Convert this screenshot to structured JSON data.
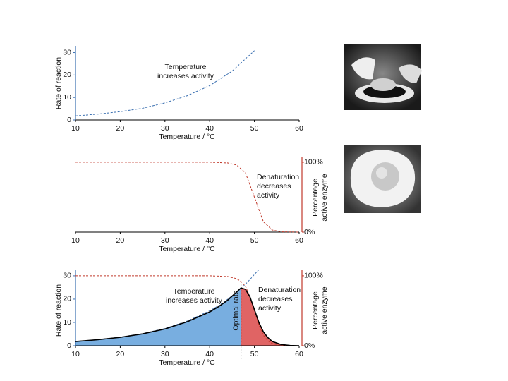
{
  "chart_data": [
    {
      "type": "line",
      "x": [
        10,
        15,
        20,
        25,
        30,
        35,
        40,
        45,
        50
      ],
      "series": [
        {
          "color": "#3a6fb0",
          "dash": true,
          "values": [
            1.8,
            2.6,
            3.7,
            5.2,
            7.6,
            10.8,
            15.3,
            21.7,
            30.9
          ]
        }
      ],
      "xlim": [
        10,
        60
      ],
      "xticks": [
        10,
        20,
        30,
        40,
        50,
        60
      ],
      "ylim": [
        0,
        33
      ],
      "yticks": [
        0,
        10,
        20,
        30
      ],
      "xlabel": "Temperature / °C",
      "ylabel": [
        "Rate of reaction"
      ],
      "y_axis_color": "#3a6fb0",
      "annotations": [
        {
          "lines": [
            "Temperature",
            "increases activity"
          ]
        }
      ]
    },
    {
      "type": "line",
      "x": [
        10,
        20,
        30,
        40,
        44,
        46,
        48,
        50,
        52,
        54,
        56,
        60
      ],
      "series": [
        {
          "color": "#c0392b",
          "dash": true,
          "axis": "y2",
          "values": [
            100,
            100,
            100,
            100,
            99,
            96,
            85,
            50,
            15,
            3,
            0.5,
            0
          ]
        }
      ],
      "xlim": [
        10,
        60
      ],
      "xticks": [
        10,
        20,
        30,
        40,
        50,
        60
      ],
      "y2lim": [
        0,
        108
      ],
      "y2ticks": [
        {
          "value": 0,
          "label": "0%"
        },
        {
          "value": 100,
          "label": "100%"
        }
      ],
      "xlabel": "Temperature / °C",
      "y2label": [
        "Percentage",
        "active enzyme"
      ],
      "y2_axis_color": "#c0392b",
      "annotations": [
        {
          "lines": [
            "Denaturation",
            "decreases",
            "activity"
          ]
        }
      ]
    },
    {
      "type": "line",
      "x": [
        10,
        15,
        20,
        25,
        30,
        35,
        40,
        42,
        44,
        46,
        47,
        48,
        49,
        50,
        51,
        52,
        53,
        54,
        56,
        58,
        60
      ],
      "series": [
        {
          "color": "#3a6fb0",
          "dash": true,
          "values": [
            1.8,
            2.6,
            3.7,
            5.2,
            7.4,
            10.6,
            15.0,
            17.2,
            19.9,
            22.9,
            24.6,
            26.4,
            28.4,
            30.6,
            32.6,
            null,
            null,
            null,
            null,
            null,
            null
          ]
        },
        {
          "color": "#c0392b",
          "dash": true,
          "axis": "y2",
          "values": [
            100,
            100,
            100,
            100,
            100,
            100,
            100,
            99.5,
            99,
            96,
            92,
            85,
            70,
            50,
            30,
            15,
            7,
            3,
            0.5,
            0,
            0
          ]
        },
        {
          "color": "#000000",
          "dash": false,
          "width": 1.6,
          "values": [
            1.8,
            2.6,
            3.6,
            5.1,
            7.2,
            10.3,
            14.5,
            16.8,
            19.5,
            23,
            24.8,
            24.2,
            21,
            15.5,
            10,
            6,
            3.5,
            1.8,
            0.5,
            0.1,
            0
          ]
        }
      ],
      "fill_series": 2,
      "optimal_x": 47,
      "optimal_label": "Optimal rate",
      "fill_colors": {
        "below_optimum": "#78aee0",
        "above_optimum": "#e06464"
      },
      "xlim": [
        10,
        60
      ],
      "xticks": [
        10,
        20,
        30,
        40,
        50,
        60
      ],
      "ylim": [
        0,
        32.4
      ],
      "yticks": [
        0,
        10,
        20,
        30
      ],
      "y2lim": [
        0,
        108
      ],
      "y2ticks": [
        {
          "value": 0,
          "label": "0%"
        },
        {
          "value": 100,
          "label": "100%"
        }
      ],
      "xlabel": "Temperature / °C",
      "ylabel": [
        "Rate of reaction"
      ],
      "y2label": [
        "Percentage",
        "active enzyme"
      ],
      "y_axis_color": "#3a6fb0",
      "y2_axis_color": "#c0392b",
      "annotations": [
        {
          "lines": [
            "Temperature",
            "increases activity"
          ]
        },
        {
          "lines": [
            "Denaturation",
            "decreases",
            "activity"
          ]
        }
      ]
    }
  ]
}
